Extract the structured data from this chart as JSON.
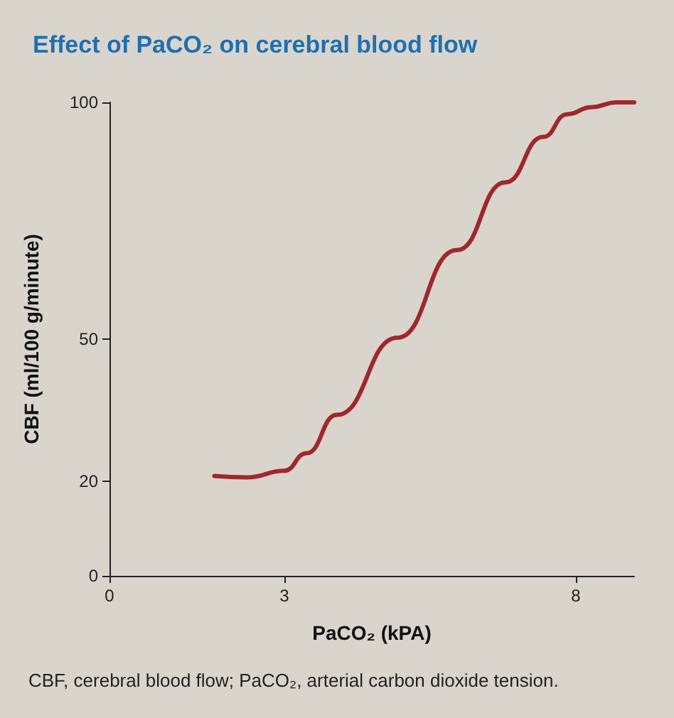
{
  "chart_data": {
    "type": "line",
    "title": "Effect of PaCO₂ on cerebral blood flow",
    "xlabel": "PaCO₂ (kPA)",
    "ylabel": "CBF (ml/100 g/minute)",
    "annotations": [
      "CBF, cerebral blood flow; PaCO₂, arterial carbon dioxide tension."
    ],
    "series": [
      {
        "color": "#a0282a",
        "x": [
          1.8,
          2.36,
          3,
          3.38,
          3.9,
          4.94,
          5.96,
          6.79,
          7.44,
          7.85,
          8.27,
          8.69,
          9.0
        ],
        "values": [
          21.1,
          20.8,
          22.2,
          25.9,
          34,
          50.3,
          68.8,
          83.1,
          92.7,
          97.5,
          99,
          100,
          100
        ]
      }
    ],
    "xlim": [
      0,
      9
    ],
    "xticks": [
      0,
      3,
      8
    ],
    "ylim": [
      0,
      100
    ],
    "yticks": [
      0,
      20,
      50,
      100
    ],
    "grid": false,
    "marker": "none",
    "line_style": "solid"
  }
}
